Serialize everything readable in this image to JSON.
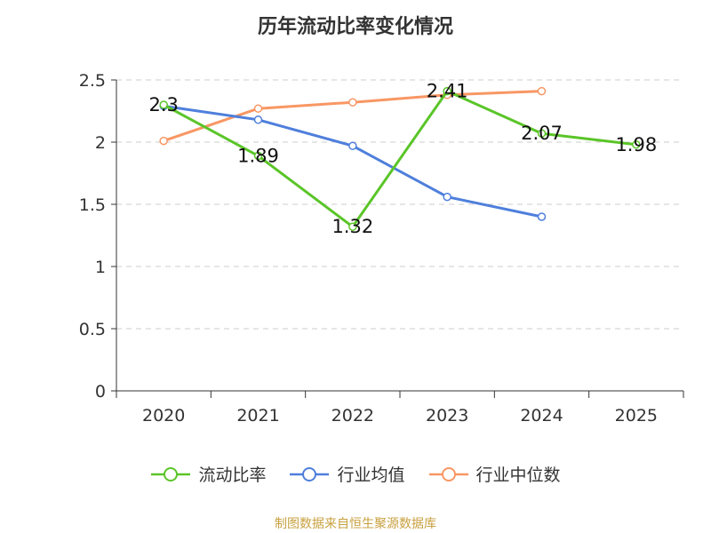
{
  "chart_data": {
    "type": "line",
    "title": "历年流动比率变化情况",
    "categories": [
      "2020",
      "2021",
      "2022",
      "2023",
      "2024",
      "2025"
    ],
    "ylim": [
      0,
      2.5
    ],
    "yticks": [
      "0",
      "0.5",
      "1",
      "1.5",
      "2",
      "2.5"
    ],
    "grid": true,
    "legend_position": "bottom",
    "series": [
      {
        "name": "流动比率",
        "color": "#5ac528",
        "values": [
          2.3,
          1.89,
          1.32,
          2.41,
          2.07,
          1.98
        ],
        "labels": [
          "2.3",
          "1.89",
          "1.32",
          "2.41",
          "2.07",
          "1.98"
        ]
      },
      {
        "name": "行业均值",
        "color": "#4e7fdc",
        "values": [
          2.29,
          2.18,
          1.97,
          1.56,
          1.4,
          null
        ]
      },
      {
        "name": "行业中位数",
        "color": "#f89764",
        "values": [
          2.01,
          2.27,
          2.32,
          2.38,
          2.41,
          null
        ]
      }
    ]
  },
  "source": "制图数据来自恒生聚源数据库"
}
